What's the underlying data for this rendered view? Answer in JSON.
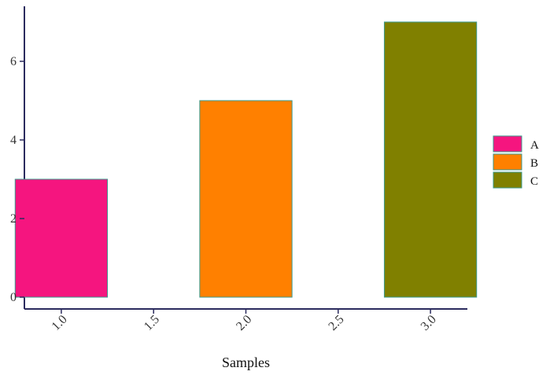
{
  "chart_data": {
    "type": "bar",
    "xlabel": "Samples",
    "ylabel": "",
    "title": "",
    "x_ticks": [
      "1.0",
      "1.5",
      "2.0",
      "2.5",
      "3.0"
    ],
    "x_tick_values": [
      1.0,
      1.5,
      2.0,
      2.5,
      3.0
    ],
    "xlim": [
      0.8,
      3.2
    ],
    "y_ticks": [
      "0",
      "2",
      "4",
      "6"
    ],
    "y_tick_values": [
      0,
      2,
      4,
      6
    ],
    "ylim": [
      -0.3,
      7.4
    ],
    "bar_width": 0.5,
    "series": [
      {
        "name": "A",
        "x": 1.0,
        "value": 3,
        "color": "#f5157f"
      },
      {
        "name": "B",
        "x": 2.0,
        "value": 5,
        "color": "#ff8000"
      },
      {
        "name": "C",
        "x": 3.0,
        "value": 7,
        "color": "#808000"
      }
    ],
    "bar_edge_color": "#3a9a8e",
    "axis_color": "#2b2b5e",
    "legend_position": "right",
    "grid": false
  }
}
